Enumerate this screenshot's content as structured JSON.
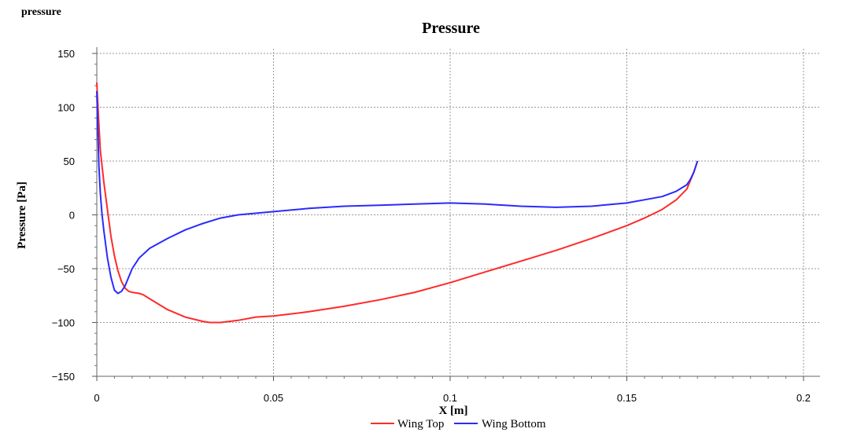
{
  "page": {
    "label": "pressure"
  },
  "colors": {
    "wing_top": "#ff2a2a",
    "wing_bottom": "#2a2aff",
    "grid": "#9a9a9a"
  },
  "chart_data": {
    "type": "line",
    "title": "Pressure",
    "xlabel": "X [m]",
    "ylabel": "Pressure [Pa]",
    "xlim": [
      0,
      0.2
    ],
    "ylim": [
      -150,
      150
    ],
    "xticks": [
      0,
      0.05,
      0.1,
      0.15,
      0.2
    ],
    "xtick_labels": [
      "0",
      "0.05",
      "0.1",
      "0.15",
      "0.2"
    ],
    "yticks": [
      150,
      100,
      50,
      0,
      -50,
      -100,
      -150
    ],
    "ytick_labels": [
      "150",
      "100",
      "50",
      "0",
      "−50",
      "−100",
      "−150"
    ],
    "grid": true,
    "legend_position": "bottom-center",
    "series": [
      {
        "name": "Wing Top",
        "color": "#ff2a2a",
        "x": [
          0,
          0.0005,
          0.001,
          0.002,
          0.003,
          0.004,
          0.005,
          0.006,
          0.007,
          0.008,
          0.009,
          0.01,
          0.012,
          0.013,
          0.015,
          0.018,
          0.02,
          0.025,
          0.03,
          0.032,
          0.035,
          0.04,
          0.045,
          0.05,
          0.06,
          0.07,
          0.08,
          0.09,
          0.1,
          0.11,
          0.12,
          0.13,
          0.14,
          0.15,
          0.155,
          0.16,
          0.164,
          0.167,
          0.168,
          0.169,
          0.17
        ],
        "y": [
          123,
          90,
          60,
          30,
          5,
          -20,
          -38,
          -52,
          -62,
          -68,
          -71,
          -72,
          -73,
          -74,
          -78,
          -84,
          -88,
          -95,
          -99,
          -100,
          -100,
          -98,
          -95,
          -94,
          -90,
          -85,
          -79,
          -72,
          -63,
          -53,
          -43,
          -33,
          -22,
          -10,
          -3,
          5,
          14,
          24,
          32,
          40,
          50
        ]
      },
      {
        "name": "Wing Bottom",
        "color": "#2a2aff",
        "x": [
          0,
          0.0003,
          0.0006,
          0.001,
          0.0015,
          0.002,
          0.003,
          0.004,
          0.005,
          0.006,
          0.007,
          0.008,
          0.009,
          0.01,
          0.012,
          0.015,
          0.02,
          0.025,
          0.03,
          0.035,
          0.04,
          0.05,
          0.06,
          0.07,
          0.08,
          0.09,
          0.1,
          0.11,
          0.12,
          0.13,
          0.14,
          0.15,
          0.155,
          0.16,
          0.164,
          0.167,
          0.168,
          0.169,
          0.17
        ],
        "y": [
          115,
          80,
          45,
          20,
          0,
          -15,
          -40,
          -58,
          -70,
          -73,
          -71,
          -66,
          -58,
          -50,
          -40,
          -31,
          -22,
          -14,
          -8,
          -3,
          0,
          3,
          6,
          8,
          9,
          10,
          11,
          10,
          8,
          7,
          8,
          11,
          14,
          17,
          22,
          28,
          33,
          40,
          50
        ]
      }
    ]
  }
}
